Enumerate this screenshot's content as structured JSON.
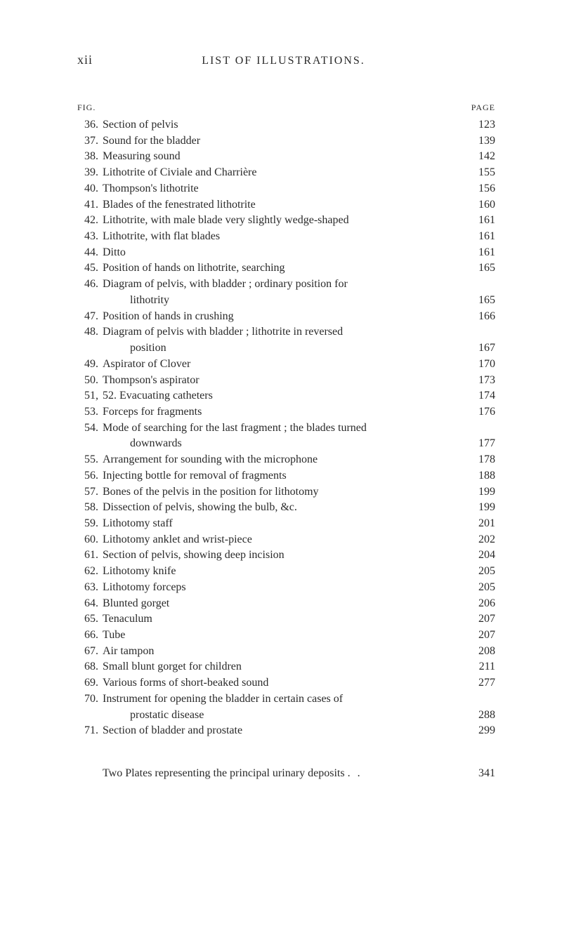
{
  "header": {
    "page_number": "xii",
    "title": "LIST OF ILLUSTRATIONS.",
    "fig_label": "FIG.",
    "page_label": "PAGE"
  },
  "entries": [
    {
      "num": "36.",
      "text": "Section of pelvis",
      "page": "123"
    },
    {
      "num": "37.",
      "text": "Sound for the bladder",
      "page": "139"
    },
    {
      "num": "38.",
      "text": "Measuring sound",
      "page": "142"
    },
    {
      "num": "39.",
      "text": "Lithotrite of Civiale and Charrière",
      "page": "155"
    },
    {
      "num": "40.",
      "text": "Thompson's lithotrite",
      "page": "156"
    },
    {
      "num": "41.",
      "text": "Blades of the fenestrated lithotrite",
      "page": "160"
    },
    {
      "num": "42.",
      "text": "Lithotrite, with male blade very slightly wedge-shaped",
      "page": "161"
    },
    {
      "num": "43.",
      "text": "Lithotrite, with flat blades",
      "page": "161"
    },
    {
      "num": "44.",
      "text": "                Ditto",
      "page": "161"
    },
    {
      "num": "45.",
      "text": "Position of hands on lithotrite, searching",
      "page": "165"
    },
    {
      "num": "46.",
      "text": "Diagram of pelvis, with bladder ; ordinary position for",
      "page": "",
      "continuation": {
        "text": "lithotrity",
        "page": "165"
      }
    },
    {
      "num": "47.",
      "text": "Position of hands in crushing",
      "page": "166"
    },
    {
      "num": "48.",
      "text": "Diagram of pelvis with bladder ; lithotrite in reversed",
      "page": "",
      "continuation": {
        "text": "position",
        "page": "167"
      }
    },
    {
      "num": "49.",
      "text": "Aspirator of Clover",
      "page": "170"
    },
    {
      "num": "50.",
      "text": "Thompson's aspirator",
      "page": "173"
    },
    {
      "num": "51,",
      "text": "52. Evacuating catheters",
      "page": "174"
    },
    {
      "num": "53.",
      "text": "Forceps for fragments",
      "page": "176"
    },
    {
      "num": "54.",
      "text": "Mode of searching for the last fragment ; the blades turned",
      "page": "",
      "continuation": {
        "text": "downwards",
        "page": "177"
      }
    },
    {
      "num": "55.",
      "text": "Arrangement for sounding with the microphone",
      "page": "178"
    },
    {
      "num": "56.",
      "text": "Injecting bottle for removal of fragments",
      "page": "188"
    },
    {
      "num": "57.",
      "text": "Bones of the pelvis in the position for lithotomy",
      "page": "199"
    },
    {
      "num": "58.",
      "text": "Dissection of pelvis, showing the bulb, &c.",
      "page": "199"
    },
    {
      "num": "59.",
      "text": "Lithotomy staff",
      "page": "201"
    },
    {
      "num": "60.",
      "text": "Lithotomy anklet and wrist-piece",
      "page": "202"
    },
    {
      "num": "61.",
      "text": "Section of pelvis, showing deep incision",
      "page": "204"
    },
    {
      "num": "62.",
      "text": "Lithotomy knife",
      "page": "205"
    },
    {
      "num": "63.",
      "text": "Lithotomy forceps",
      "page": "205"
    },
    {
      "num": "64.",
      "text": "Blunted gorget",
      "page": "206"
    },
    {
      "num": "65.",
      "text": "Tenaculum",
      "page": "207"
    },
    {
      "num": "66.",
      "text": "Tube",
      "page": "207"
    },
    {
      "num": "67.",
      "text": "Air tampon",
      "page": "208"
    },
    {
      "num": "68.",
      "text": "Small blunt gorget for children",
      "page": "211"
    },
    {
      "num": "69.",
      "text": "Various forms of short-beaked sound",
      "page": "277"
    },
    {
      "num": "70.",
      "text": "Instrument for opening the bladder in certain cases of",
      "page": "",
      "continuation": {
        "text": "prostatic disease",
        "page": "288"
      }
    },
    {
      "num": "71.",
      "text": "Section of bladder and prostate",
      "page": "299"
    }
  ],
  "footer": {
    "text": "Two Plates representing the principal urinary deposits",
    "page": "341"
  },
  "styling": {
    "background_color": "#ffffff",
    "text_color": "#2a2a2a",
    "font_family": "Times New Roman, Georgia, serif",
    "body_font_size": 16,
    "title_font_size": 16,
    "page_number_font_size": 18,
    "label_font_size": 12,
    "line_height": 1.42
  }
}
